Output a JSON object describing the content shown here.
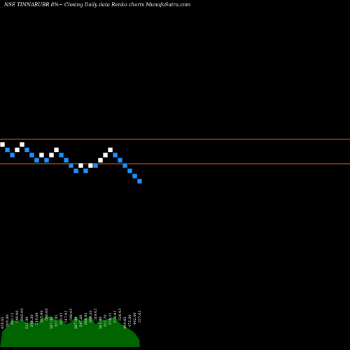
{
  "chart_data": {
    "type": "renko",
    "title": "NSE TINNARUBR 8%~  Closing Daily data  Renko  charts MunafaSutra.com",
    "horizontal_lines": [
      {
        "price": "upper",
        "color": "#d2691e"
      },
      {
        "price": "lower",
        "color": "#d2691e"
      }
    ],
    "bricks": [
      {
        "level": 0,
        "color": "white"
      },
      {
        "level": -1,
        "color": "blue"
      },
      {
        "level": -2,
        "color": "blue"
      },
      {
        "level": -1,
        "color": "white"
      },
      {
        "level": 0,
        "color": "white"
      },
      {
        "level": -1,
        "color": "blue"
      },
      {
        "level": -2,
        "color": "blue"
      },
      {
        "level": -3,
        "color": "blue"
      },
      {
        "level": -2,
        "color": "white"
      },
      {
        "level": -3,
        "color": "blue"
      },
      {
        "level": -2,
        "color": "white"
      },
      {
        "level": -1,
        "color": "white"
      },
      {
        "level": -2,
        "color": "blue"
      },
      {
        "level": -3,
        "color": "blue"
      },
      {
        "level": -4,
        "color": "blue"
      },
      {
        "level": -5,
        "color": "blue"
      },
      {
        "level": -4,
        "color": "white"
      },
      {
        "level": -5,
        "color": "blue"
      },
      {
        "level": -4,
        "color": "white"
      },
      {
        "level": -4,
        "color": "blue"
      },
      {
        "level": -3,
        "color": "white"
      },
      {
        "level": -2,
        "color": "white"
      },
      {
        "level": -1,
        "color": "white"
      },
      {
        "level": -2,
        "color": "blue"
      },
      {
        "level": -3,
        "color": "blue"
      },
      {
        "level": -4,
        "color": "blue"
      },
      {
        "level": -5,
        "color": "blue"
      },
      {
        "level": -6,
        "color": "blue"
      },
      {
        "level": -7,
        "color": "blue"
      }
    ],
    "volume_labels": [
      "458.65",
      "500.00",
      "562.15",
      "540.90",
      "565.00",
      "523.00",
      "548.30",
      "519.00",
      "565.90",
      "586.00",
      "587.00",
      "557.05",
      "563.05",
      "517.95",
      "540.05",
      "587.00",
      "547.60",
      "568.95",
      "589.30",
      "519.05",
      "565.00",
      "553.70",
      "578.25",
      "576.85",
      "526.95",
      "499.65",
      "475.00",
      "442.40",
      "377.65"
    ],
    "colors": {
      "white_brick": "#ffffff",
      "blue_brick": "#1e90ff",
      "volume": "#006400",
      "line": "#d2691e",
      "background": "#000000"
    }
  }
}
